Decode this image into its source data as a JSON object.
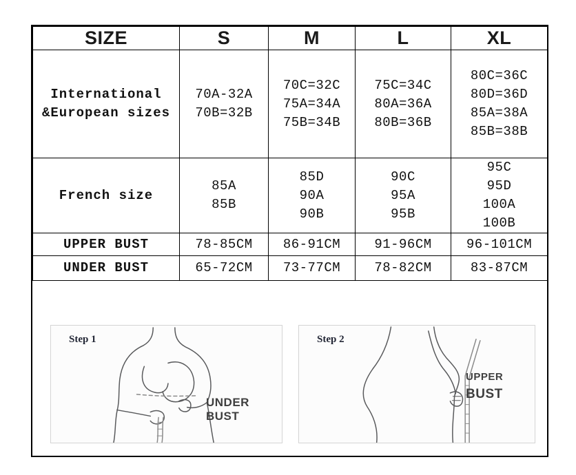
{
  "table": {
    "headers": [
      "SIZE",
      "S",
      "M",
      "L",
      "XL"
    ],
    "rows": [
      {
        "label_lines": [
          "International",
          "&European sizes"
        ],
        "cells": [
          [
            "70A-32A",
            "70B=32B"
          ],
          [
            "70C=32C",
            "75A=34A",
            "75B=34B"
          ],
          [
            "75C=34C",
            "80A=36A",
            "80B=36B"
          ],
          [
            "80C=36C",
            "80D=36D",
            "85A=38A",
            "85B=38B"
          ]
        ]
      },
      {
        "label_lines": [
          "French size"
        ],
        "cells": [
          [
            "85A",
            "85B"
          ],
          [
            "85D",
            "90A",
            "90B"
          ],
          [
            "90C",
            "95A",
            "95B"
          ],
          [
            "95C",
            "95D",
            "100A",
            "100B"
          ]
        ]
      },
      {
        "label_lines": [
          "UPPER BUST"
        ],
        "cells": [
          [
            "78-85CM"
          ],
          [
            "86-91CM"
          ],
          [
            "91-96CM"
          ],
          [
            "96-101CM"
          ]
        ]
      },
      {
        "label_lines": [
          "UNDER BUST"
        ],
        "cells": [
          [
            "65-72CM"
          ],
          [
            "73-77CM"
          ],
          [
            "78-82CM"
          ],
          [
            "83-87CM"
          ]
        ]
      }
    ]
  },
  "measure_guide": {
    "steps": [
      {
        "label": "Step 1",
        "caption_lines": [
          "UNDER BUST"
        ]
      },
      {
        "label": "Step 2",
        "caption_lines": [
          "UPPER",
          "BUST"
        ]
      }
    ]
  },
  "colors": {
    "table_border": "#000000",
    "text": "#111111",
    "figure_box_border": "#d4d4d4",
    "figure_stroke": "#58595b",
    "tape": "#8a8a8a",
    "caption": "#3f3f3f"
  }
}
